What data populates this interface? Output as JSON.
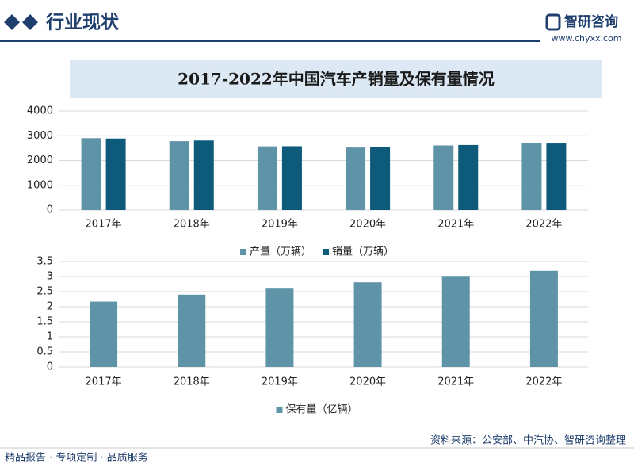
{
  "header": {
    "title": "行业现状",
    "brand": "智研咨询",
    "url": "www.chyxx.com"
  },
  "footer": {
    "slogan": "精品报告 · 专项定制 · 品质服务",
    "source": "资料来源：公安部、中汽协、智研咨询整理"
  },
  "chart_data": [
    {
      "type": "bar",
      "title": "2017-2022年中国汽车产销量及保有量情况",
      "categories": [
        "2017年",
        "2018年",
        "2019年",
        "2020年",
        "2021年",
        "2022年"
      ],
      "series": [
        {
          "name": "产量（万辆）",
          "color": "#5e93a8",
          "values": [
            2902,
            2781,
            2572,
            2523,
            2608,
            2702
          ]
        },
        {
          "name": "销量（万辆）",
          "color": "#0d5a7b",
          "values": [
            2888,
            2808,
            2577,
            2531,
            2627,
            2686
          ]
        }
      ],
      "ylim": [
        0,
        4000
      ],
      "yticks": [
        0,
        1000,
        2000,
        3000,
        4000
      ],
      "grid": true,
      "legend": "bottom"
    },
    {
      "type": "bar",
      "categories": [
        "2017年",
        "2018年",
        "2019年",
        "2020年",
        "2021年",
        "2022年"
      ],
      "series": [
        {
          "name": "保有量（亿辆）",
          "color": "#5e93a8",
          "values": [
            2.17,
            2.4,
            2.6,
            2.81,
            3.02,
            3.19
          ]
        }
      ],
      "ylim": [
        0,
        3.5
      ],
      "yticks": [
        0,
        0.5,
        1,
        1.5,
        2,
        2.5,
        3,
        3.5
      ],
      "grid": true,
      "legend": "bottom"
    }
  ]
}
